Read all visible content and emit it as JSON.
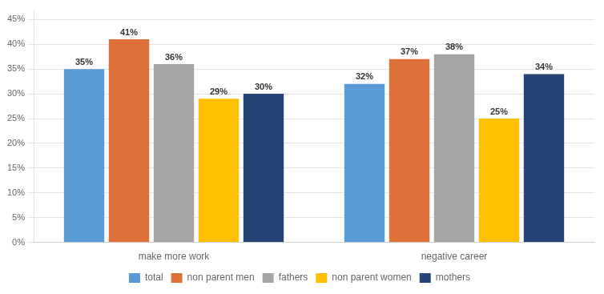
{
  "chart_data": {
    "type": "bar",
    "categories": [
      "make more work",
      "negative career"
    ],
    "series": [
      {
        "name": "total",
        "color": "#5B9BD5",
        "values": [
          35,
          32
        ],
        "value_labels": [
          "35%",
          "32%"
        ]
      },
      {
        "name": "non parent men",
        "color": "#E0703A",
        "values": [
          41,
          37
        ],
        "value_labels": [
          "41%",
          "37%"
        ]
      },
      {
        "name": "fathers",
        "color": "#A5A5A5",
        "values": [
          36,
          38
        ],
        "value_labels": [
          "36%",
          "38%"
        ]
      },
      {
        "name": "non parent women",
        "color": "#FFC000",
        "values": [
          29,
          25
        ],
        "value_labels": [
          "29%",
          "25%"
        ]
      },
      {
        "name": "mothers",
        "color": "#264478",
        "values": [
          30,
          34
        ],
        "value_labels": [
          "30%",
          "34%"
        ]
      }
    ],
    "ylim": [
      0,
      47
    ],
    "yticks": [
      {
        "value": 0,
        "label": "0%"
      },
      {
        "value": 5,
        "label": "5%"
      },
      {
        "value": 10,
        "label": "10%"
      },
      {
        "value": 15,
        "label": "15%"
      },
      {
        "value": 20,
        "label": "20%"
      },
      {
        "value": 25,
        "label": "25%"
      },
      {
        "value": 30,
        "label": "30%"
      },
      {
        "value": 35,
        "label": "35%"
      },
      {
        "value": 40,
        "label": "40%"
      },
      {
        "value": 45,
        "label": "45%"
      }
    ],
    "grid": true,
    "legend": "bottom",
    "data_labels": true
  }
}
